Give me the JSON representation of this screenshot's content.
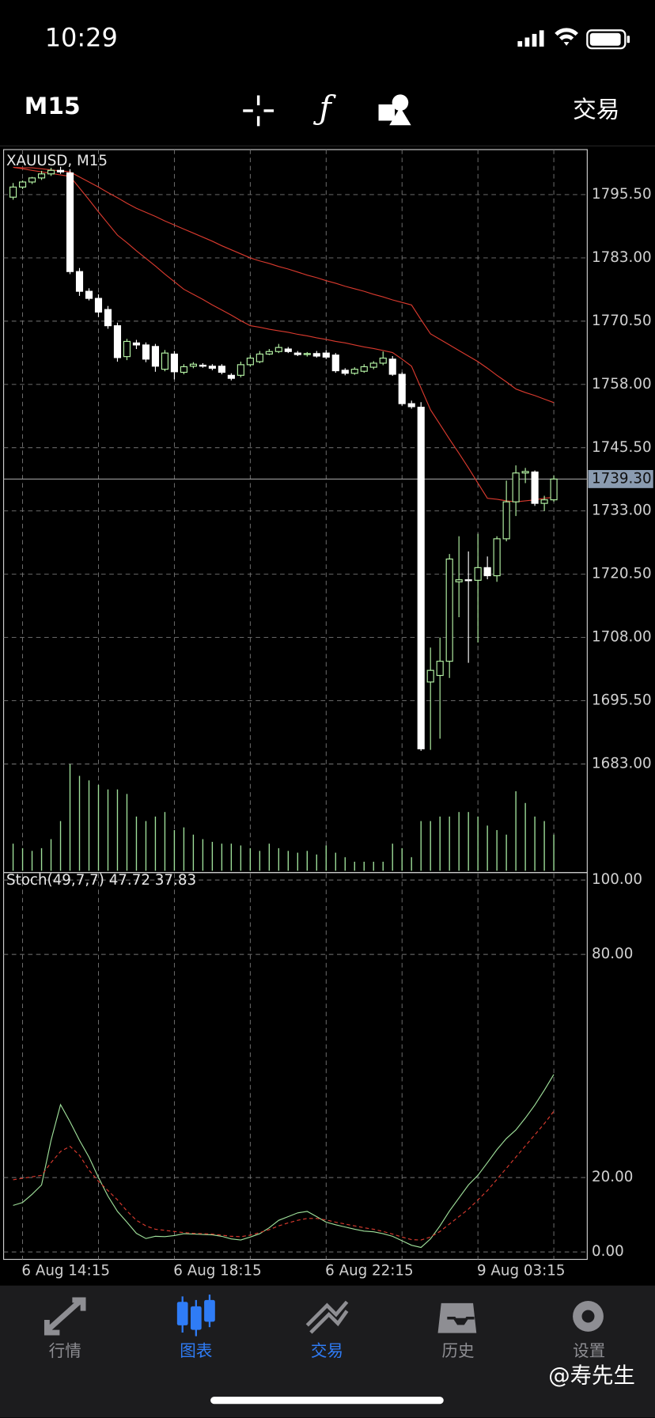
{
  "status_bar": {
    "time": "10:29"
  },
  "toolbar": {
    "timeframe": "M15",
    "trade": "交易"
  },
  "chart_data": [
    {
      "type": "candlestick",
      "title": "XAUUSD, M15",
      "categories": [
        null,
        "6 Aug 14:15",
        null,
        null,
        null,
        null,
        null,
        null,
        null,
        null,
        null,
        null,
        null,
        null,
        null,
        null,
        null,
        "6 Aug 18:15",
        null,
        null,
        null,
        null,
        null,
        null,
        null,
        null,
        null,
        null,
        null,
        null,
        null,
        null,
        null,
        "6 Aug 22:15",
        null,
        null,
        null,
        null,
        null,
        null,
        null,
        null,
        null,
        null,
        null,
        null,
        null,
        null,
        null,
        "9 Aug 03:15",
        null,
        null,
        null,
        null,
        null,
        null,
        null,
        null
      ],
      "open": [
        1795.0,
        1797.0,
        1798.0,
        1798.8,
        1799.6,
        1800.3,
        1799.8,
        1780.3,
        1776.4,
        1775.0,
        1772.8,
        1769.6,
        1763.5,
        1766.2,
        1765.8,
        1765.5,
        1761.0,
        1764.0,
        1760.4,
        1761.6,
        1761.8,
        1761.6,
        1761.6,
        1759.8,
        1759.8,
        1761.9,
        1762.5,
        1764.0,
        1764.5,
        1765.0,
        1764.2,
        1763.9,
        1764.1,
        1764.2,
        1763.8,
        1760.8,
        1760.2,
        1760.6,
        1761.4,
        1762.2,
        1763.0,
        1760.0,
        1754.2,
        1753.5,
        1699.2,
        1700.5,
        1703.3,
        1719.0,
        1719.4,
        1719.3,
        1721.8,
        1720.2,
        1727.5,
        1734.8,
        1740.5,
        1740.7,
        1734.5,
        1735.2
      ],
      "high": [
        1797.8,
        1798.3,
        1799.0,
        1800.2,
        1800.8,
        1801.0,
        1800.5,
        1781.0,
        1777.0,
        1775.8,
        1773.5,
        1770.2,
        1767.0,
        1766.8,
        1766.3,
        1766.0,
        1764.8,
        1764.6,
        1762.0,
        1762.4,
        1762.2,
        1762.0,
        1762.0,
        1760.2,
        1762.5,
        1763.8,
        1764.6,
        1765.0,
        1766.0,
        1765.4,
        1764.6,
        1764.4,
        1764.6,
        1764.8,
        1764.2,
        1761.2,
        1761.4,
        1762.0,
        1762.6,
        1764.5,
        1763.6,
        1760.4,
        1754.8,
        1754.5,
        1706.0,
        1708.0,
        1724.5,
        1728.0,
        1725.0,
        1728.5,
        1724.0,
        1728.0,
        1739.0,
        1742.0,
        1741.5,
        1741.0,
        1736.0,
        1740.0
      ],
      "low": [
        1794.5,
        1796.6,
        1797.6,
        1798.4,
        1799.2,
        1799.6,
        1779.8,
        1775.5,
        1774.6,
        1771.3,
        1769.0,
        1762.5,
        1762.8,
        1765.0,
        1762.4,
        1760.5,
        1760.6,
        1759.0,
        1760.0,
        1761.2,
        1761.3,
        1760.8,
        1760.0,
        1758.8,
        1759.4,
        1761.5,
        1762.2,
        1763.8,
        1764.2,
        1764.2,
        1763.6,
        1763.5,
        1763.3,
        1763.0,
        1760.3,
        1759.8,
        1759.9,
        1760.3,
        1761.0,
        1761.8,
        1759.7,
        1753.8,
        1753.2,
        1685.6,
        1685.8,
        1688.0,
        1700.0,
        1712.0,
        1703.0,
        1707.0,
        1719.5,
        1719.0,
        1727.0,
        1732.0,
        1738.5,
        1734.0,
        1733.0,
        1734.8
      ],
      "close": [
        1797.0,
        1798.0,
        1798.8,
        1799.6,
        1800.3,
        1800.0,
        1780.3,
        1776.4,
        1775.0,
        1772.3,
        1769.6,
        1763.3,
        1766.5,
        1765.8,
        1763.0,
        1761.6,
        1764.2,
        1760.5,
        1761.5,
        1762.0,
        1761.6,
        1761.2,
        1760.4,
        1759.2,
        1761.9,
        1763.2,
        1764.0,
        1764.5,
        1765.3,
        1764.5,
        1763.9,
        1764.1,
        1763.6,
        1763.4,
        1760.7,
        1760.2,
        1761.0,
        1761.5,
        1762.2,
        1763.2,
        1760.0,
        1754.2,
        1753.6,
        1686.0,
        1701.5,
        1703.3,
        1723.5,
        1719.4,
        1719.3,
        1721.8,
        1720.2,
        1727.5,
        1734.8,
        1740.5,
        1740.8,
        1734.5,
        1735.2,
        1739.3
      ],
      "bull_color": "#b6f5a6",
      "bear_color": "#ffffff",
      "overlays": [
        {
          "color": "#d93a2e",
          "values": [
            1800.9,
            1800.8,
            1800.8,
            1800.6,
            1800.4,
            1800.2,
            1800.0,
            1799.0,
            1798.0,
            1797.0,
            1795.9,
            1794.9,
            1793.8,
            1792.8,
            1792.0,
            1791.2,
            1790.3,
            1789.5,
            1788.7,
            1787.9,
            1787.1,
            1786.3,
            1785.4,
            1784.6,
            1783.8,
            1783.0,
            1782.4,
            1781.9,
            1781.3,
            1780.8,
            1780.2,
            1779.6,
            1779.1,
            1778.5,
            1778.0,
            1777.4,
            1776.9,
            1776.4,
            1775.8,
            1775.3,
            1774.7,
            1774.2,
            1773.7,
            1770.8,
            1768.0,
            1766.9,
            1765.8,
            1764.7,
            1763.6,
            1762.5,
            1761.2,
            1759.8,
            1758.5,
            1757.1,
            1756.4,
            1755.8,
            1755.1,
            1754.4
          ]
        },
        {
          "color": "#d93a2e",
          "values": [
            1800.9,
            1800.6,
            1800.3,
            1800.0,
            1799.7,
            1799.4,
            1799.1,
            1796.8,
            1794.5,
            1792.1,
            1789.8,
            1787.5,
            1786.0,
            1784.4,
            1782.9,
            1781.4,
            1779.8,
            1778.3,
            1776.8,
            1775.8,
            1774.8,
            1773.7,
            1772.7,
            1771.7,
            1770.6,
            1769.6,
            1769.3,
            1768.9,
            1768.6,
            1768.3,
            1767.9,
            1767.6,
            1767.2,
            1766.9,
            1766.5,
            1766.2,
            1765.8,
            1765.4,
            1765.1,
            1764.7,
            1764.3,
            1763.0,
            1761.6,
            1757.3,
            1753.0,
            1750.1,
            1747.2,
            1744.4,
            1741.5,
            1738.5,
            1735.5,
            1735.3,
            1735.0,
            1734.8,
            1735.0,
            1735.2,
            1735.5,
            1735.7
          ]
        }
      ],
      "volume": {
        "color": "#9fe09a",
        "values": [
          30,
          25,
          22,
          25,
          35,
          55,
          118,
          105,
          100,
          95,
          90,
          90,
          85,
          60,
          55,
          60,
          65,
          45,
          48,
          40,
          35,
          32,
          30,
          30,
          28,
          25,
          22,
          30,
          25,
          22,
          20,
          22,
          18,
          28,
          20,
          15,
          10,
          10,
          10,
          10,
          30,
          25,
          15,
          55,
          55,
          60,
          60,
          65,
          65,
          60,
          50,
          45,
          40,
          88,
          75,
          60,
          55,
          40
        ]
      },
      "last_price": {
        "value": 1739.3,
        "label": "1739.30"
      },
      "ylim": [
        1661.9,
        1804.4
      ],
      "yticks": [
        {
          "value": 1683,
          "label": "1683.00"
        },
        {
          "value": 1695.5,
          "label": "1695.50"
        },
        {
          "value": 1708,
          "label": "1708.00"
        },
        {
          "value": 1720.5,
          "label": "1720.50"
        },
        {
          "value": 1733,
          "label": "1733.00"
        },
        {
          "value": 1745.5,
          "label": "1745.50"
        },
        {
          "value": 1758,
          "label": "1758.00"
        },
        {
          "value": 1770.5,
          "label": "1770.50"
        },
        {
          "value": 1783,
          "label": "1783.00"
        },
        {
          "value": 1795.5,
          "label": "1795.50"
        }
      ],
      "grid": true
    },
    {
      "type": "line",
      "title": "Stoch(49,7,7) 47.72 37.83",
      "series": [
        {
          "color": "#9fe09a",
          "style": "solid",
          "values": [
            12.5,
            13.3,
            15.5,
            18,
            30,
            39.6,
            35,
            30,
            25.5,
            20,
            15,
            10.9,
            8,
            5,
            3.6,
            4.2,
            4.1,
            4.4,
            4.9,
            4.8,
            4.7,
            4.6,
            4.2,
            3.5,
            3.2,
            4.0,
            4.9,
            6.5,
            8.5,
            9.5,
            10.5,
            10.9,
            9.5,
            8.0,
            7.3,
            6.7,
            6.1,
            5.6,
            5.4,
            4.9,
            4.2,
            3.0,
            1.8,
            1.2,
            3.5,
            7.0,
            11.0,
            14.5,
            18.0,
            20.6,
            24.0,
            27.5,
            30.5,
            32.8,
            36.0,
            39.5,
            43.5,
            47.72
          ]
        },
        {
          "color": "#d93a2e",
          "style": "dashed",
          "values": [
            19.4,
            19.8,
            20.2,
            20.6,
            24,
            27,
            28.4,
            26,
            22,
            19,
            16.5,
            14,
            11,
            8.5,
            7,
            6.1,
            5.8,
            5.5,
            5.2,
            5.0,
            4.9,
            4.8,
            4.5,
            4.2,
            4.1,
            4.5,
            5.2,
            6.0,
            7.0,
            7.8,
            8.5,
            9.0,
            9.0,
            8.6,
            8.0,
            7.5,
            7.0,
            6.5,
            6.1,
            5.5,
            4.8,
            4.0,
            3.3,
            3.2,
            4.0,
            5.5,
            7.5,
            9.5,
            11.5,
            14.0,
            16.5,
            19.5,
            22.5,
            25.5,
            28.5,
            31.5,
            34.5,
            37.83
          ]
        }
      ],
      "ylim": [
        -2,
        102
      ],
      "yticks": [
        {
          "value": 0,
          "label": "0.00"
        },
        {
          "value": 20,
          "label": "20.00"
        },
        {
          "value": 80,
          "label": "80.00"
        },
        {
          "value": 100,
          "label": "100.00"
        }
      ],
      "grid": true
    }
  ],
  "tab_bar": {
    "tabs": [
      {
        "label": "行情",
        "color": "#8e8e93"
      },
      {
        "label": "图表",
        "color": "#2f7cf6"
      },
      {
        "label": "交易",
        "color": "#2f7cf6"
      },
      {
        "label": "历史",
        "color": "#8e8e93"
      },
      {
        "label": "设置",
        "color": "#8e8e93"
      }
    ]
  },
  "watermark": "@寿先生"
}
